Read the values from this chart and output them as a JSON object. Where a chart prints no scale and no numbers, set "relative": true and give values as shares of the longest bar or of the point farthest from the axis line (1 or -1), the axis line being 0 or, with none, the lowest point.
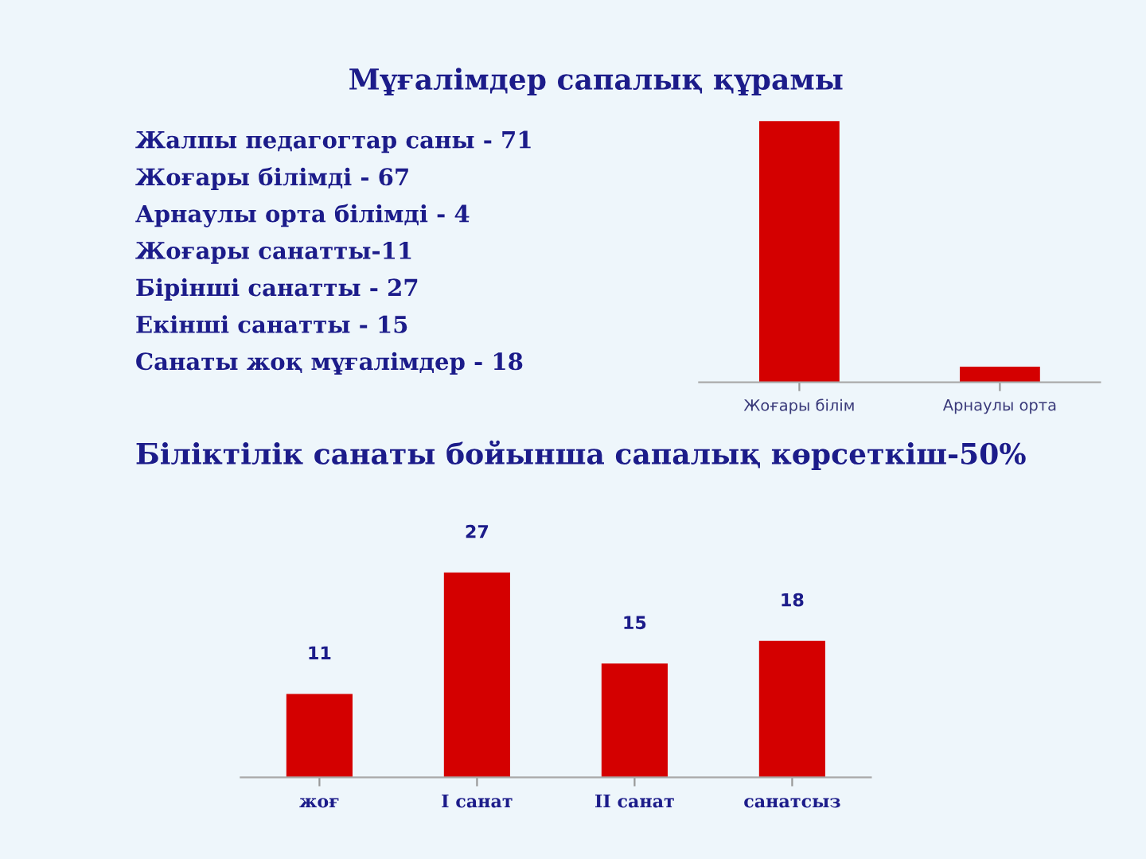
{
  "chart_data": [
    {
      "type": "bar",
      "title": "Мұғалімдер сапалық құрамы",
      "relative": true,
      "tick_labels": "x",
      "grid": false,
      "legend": false,
      "categories": [
        "Жоғары білім",
        "Арнаулы орта"
      ],
      "values": [
        1,
        0.06
      ],
      "color": "#d40000",
      "annotations": [
        "Жалпы педагогтар саны - 71",
        "Жоғары білімді - 67",
        "Арнаулы орта білімді - 4",
        "Жоғары санатты-11",
        "Бірінші санатты - 27",
        "Екінші санатты - 15",
        "Санаты жоқ мұғалімдер - 18"
      ]
    },
    {
      "type": "bar",
      "title": "Біліктілік санаты бойынша сапалық көрсеткіш-50%",
      "tick_labels": "x",
      "grid": false,
      "legend": false,
      "data_labels": true,
      "categories": [
        "жоғ",
        "I санат",
        "II санат",
        "санатсыз"
      ],
      "values": [
        11,
        27,
        15,
        18
      ],
      "color": "#d40000"
    }
  ]
}
